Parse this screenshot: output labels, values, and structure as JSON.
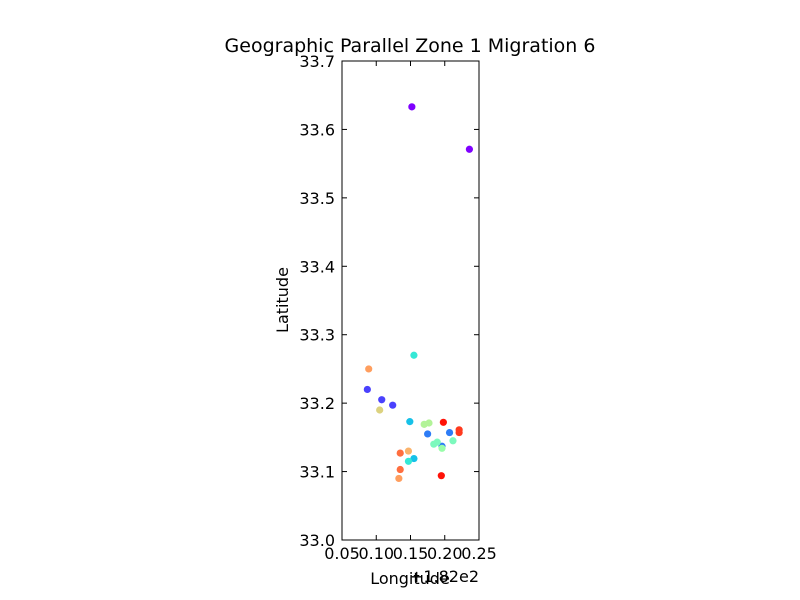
{
  "chart_data": {
    "type": "scatter",
    "title": "Geographic Parallel Zone 1 Migration 6",
    "xlabel": "Longitude",
    "ylabel": "Latitude",
    "x_offset_label": "+1.82e2",
    "xlim": [
      0.05,
      0.25
    ],
    "ylim": [
      33.0,
      33.7
    ],
    "x_ticks": [
      0.05,
      0.1,
      0.15,
      0.2,
      0.25
    ],
    "x_tick_labels": [
      "0.05",
      "0.10",
      "0.15",
      "0.20",
      "0.25"
    ],
    "y_ticks": [
      33.0,
      33.1,
      33.2,
      33.3,
      33.4,
      33.5,
      33.6,
      33.7
    ],
    "y_tick_labels": [
      "33.0",
      "33.1",
      "33.2",
      "33.3",
      "33.4",
      "33.5",
      "33.6",
      "33.7"
    ],
    "grid": false,
    "points": [
      {
        "x": 0.152,
        "y": 33.633,
        "color": "#7f00ff"
      },
      {
        "x": 0.236,
        "y": 33.571,
        "color": "#7f00ff"
      },
      {
        "x": 0.087,
        "y": 33.22,
        "color": "#4a41fd"
      },
      {
        "x": 0.108,
        "y": 33.205,
        "color": "#4a41fd"
      },
      {
        "x": 0.124,
        "y": 33.197,
        "color": "#4a41fd"
      },
      {
        "x": 0.196,
        "y": 33.137,
        "color": "#2d7cf6"
      },
      {
        "x": 0.207,
        "y": 33.157,
        "color": "#2d7cf6"
      },
      {
        "x": 0.175,
        "y": 33.155,
        "color": "#2d7cf6"
      },
      {
        "x": 0.155,
        "y": 33.119,
        "color": "#16c1e8"
      },
      {
        "x": 0.149,
        "y": 33.173,
        "color": "#16c1e8"
      },
      {
        "x": 0.155,
        "y": 33.27,
        "color": "#35e8d6"
      },
      {
        "x": 0.147,
        "y": 33.115,
        "color": "#35e8d6"
      },
      {
        "x": 0.184,
        "y": 33.14,
        "color": "#7cf9bd"
      },
      {
        "x": 0.189,
        "y": 33.143,
        "color": "#7cf9bd"
      },
      {
        "x": 0.212,
        "y": 33.145,
        "color": "#7cf9bd"
      },
      {
        "x": 0.196,
        "y": 33.134,
        "color": "#98fda9"
      },
      {
        "x": 0.17,
        "y": 33.169,
        "color": "#b2f398"
      },
      {
        "x": 0.177,
        "y": 33.171,
        "color": "#b2f398"
      },
      {
        "x": 0.105,
        "y": 33.19,
        "color": "#dcd27f"
      },
      {
        "x": 0.147,
        "y": 33.13,
        "color": "#fbb36b"
      },
      {
        "x": 0.089,
        "y": 33.25,
        "color": "#ff9e5e"
      },
      {
        "x": 0.133,
        "y": 33.09,
        "color": "#ff9e5e"
      },
      {
        "x": 0.135,
        "y": 33.127,
        "color": "#ff6e3f"
      },
      {
        "x": 0.135,
        "y": 33.103,
        "color": "#ff6e3f"
      },
      {
        "x": 0.221,
        "y": 33.161,
        "color": "#ff3a1e"
      },
      {
        "x": 0.221,
        "y": 33.157,
        "color": "#ff3a1e"
      },
      {
        "x": 0.198,
        "y": 33.172,
        "color": "#ff1208"
      },
      {
        "x": 0.195,
        "y": 33.094,
        "color": "#ff1208"
      }
    ]
  }
}
